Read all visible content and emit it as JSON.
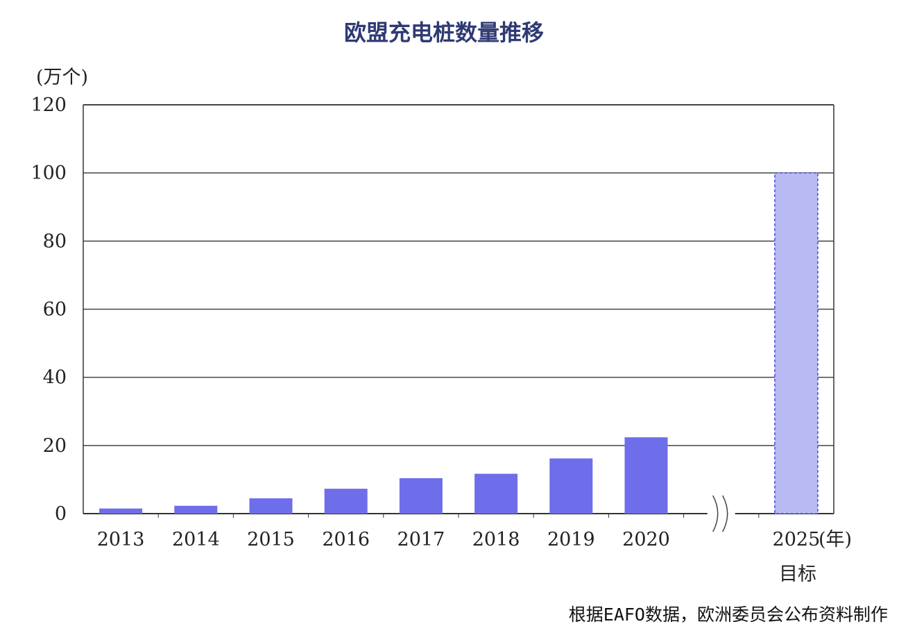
{
  "colors": {
    "title": "#2f3a73",
    "bar": "#6e6eea",
    "target_bar": "#b9b9f3",
    "target_border": "#4646e0",
    "grid": "#444444"
  },
  "chart_data": {
    "type": "bar",
    "title": "欧盟充电桩数量推移",
    "ylabel": "(万个)",
    "xlabel": "(年)",
    "ylim": [
      0,
      120
    ],
    "yticks": [
      0,
      20,
      40,
      60,
      80,
      100,
      120
    ],
    "grid": true,
    "categories": [
      "2013",
      "2014",
      "2015",
      "2016",
      "2017",
      "2018",
      "2019",
      "2020",
      "2025"
    ],
    "values": [
      1.5,
      2.3,
      4.5,
      7.3,
      10.4,
      11.7,
      16.2,
      22.4,
      100
    ],
    "target_category": "2025",
    "target_label": "目标",
    "axis_break": true
  },
  "source_note": "根据EAFO数据，欧洲委员会公布资料制作"
}
